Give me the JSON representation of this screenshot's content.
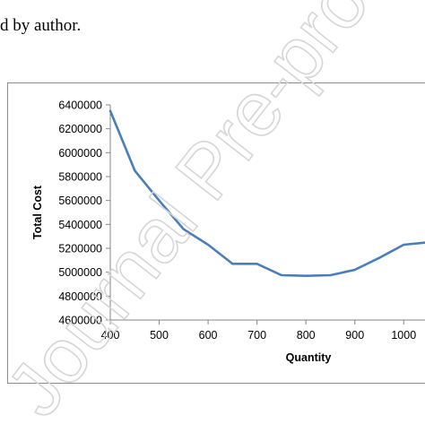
{
  "caption": "d by author.",
  "watermark_text": "Journal Pre-proof",
  "colors": {
    "series": "#4a7ebb",
    "axis": "#868686",
    "watermark": "#d6d6d6"
  },
  "chart_data": {
    "type": "line",
    "title": "",
    "xlabel": "Quantity",
    "ylabel": "Total Cost",
    "x_ticks": [
      400,
      500,
      600,
      700,
      800,
      900,
      1000
    ],
    "y_ticks": [
      4600000,
      4800000,
      5000000,
      5200000,
      5400000,
      5600000,
      5800000,
      6000000,
      6200000,
      6400000
    ],
    "y_tick_labels": [
      "4600000",
      "4800000",
      "5000000",
      "5200000",
      "5400000",
      "5600000",
      "5800000",
      "6000000",
      "6200000",
      "6400000"
    ],
    "x_tick_labels": [
      "400",
      "500",
      "600",
      "700",
      "800",
      "900",
      "1000"
    ],
    "ylim": [
      4600000,
      6400000
    ],
    "xlim": [
      400,
      1060
    ],
    "grid": false,
    "series": [
      {
        "x": [
          400,
          450,
          500,
          550,
          600,
          650,
          700,
          750,
          800,
          850,
          900,
          950,
          1000,
          1050
        ],
        "values": [
          6350000,
          5850000,
          5600000,
          5360000,
          5230000,
          5070000,
          5070000,
          4975000,
          4970000,
          4975000,
          5020000,
          5120000,
          5230000,
          5250000
        ]
      }
    ]
  }
}
